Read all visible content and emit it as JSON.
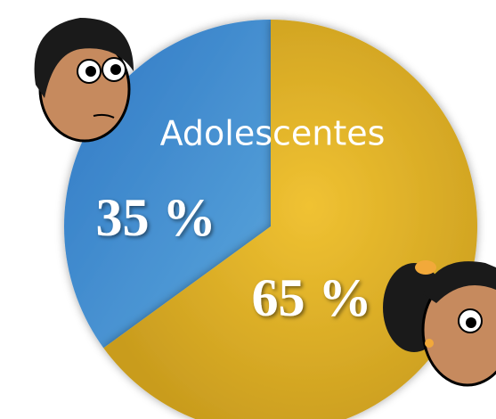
{
  "chart_data": {
    "type": "pie",
    "title": "Adolescentes",
    "values": [
      35,
      65
    ],
    "value_labels": [
      "35 %",
      "65 %"
    ],
    "colors": [
      "#3f8bd0",
      "#d4a62a"
    ]
  }
}
